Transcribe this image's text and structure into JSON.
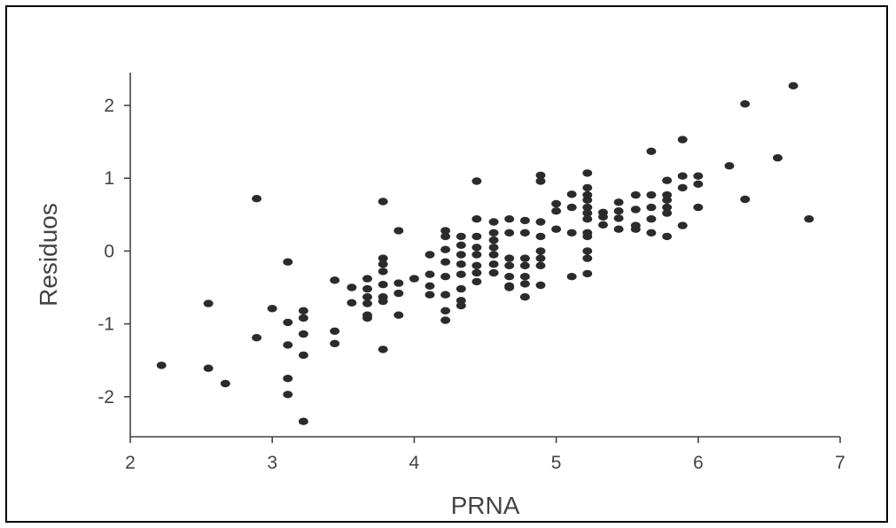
{
  "chart_data": {
    "type": "scatter",
    "title": "",
    "xlabel": "PRNA",
    "ylabel": "Residuos",
    "xlim": [
      2,
      7
    ],
    "ylim": [
      -2.55,
      2.45
    ],
    "xticks": [
      2,
      3,
      4,
      5,
      6,
      7
    ],
    "yticks": [
      -2,
      -1,
      0,
      1,
      2
    ],
    "xtick_labels": [
      "2",
      "3",
      "4",
      "5",
      "6",
      "7"
    ],
    "ytick_labels": [
      "-2",
      "-1",
      "0",
      "1",
      "2"
    ],
    "grid": false,
    "legend": "none",
    "colors": {
      "points": "#2b2b2b",
      "axes": "#444444",
      "text": "#444444"
    },
    "series": [
      {
        "x": [
          2.22,
          2.55,
          2.55,
          2.67,
          2.89,
          2.89,
          3.0,
          3.11,
          3.11,
          3.11,
          3.11,
          3.11,
          3.22,
          3.22,
          3.22,
          3.22,
          3.22,
          3.44,
          3.44,
          3.44,
          3.56,
          3.56,
          3.67,
          3.67,
          3.67,
          3.67,
          3.67,
          3.67,
          3.78,
          3.78,
          3.78,
          3.78,
          3.78,
          3.78,
          3.78,
          3.78,
          3.89,
          3.89,
          3.89,
          3.89,
          4.0,
          4.11,
          4.11,
          4.11,
          4.11,
          4.22,
          4.22,
          4.22,
          4.22,
          4.22,
          4.22,
          4.22,
          4.22,
          4.33,
          4.33,
          4.33,
          4.33,
          4.33,
          4.33,
          4.33,
          4.33,
          4.44,
          4.44,
          4.44,
          4.44,
          4.44,
          4.44,
          4.44,
          4.44,
          4.56,
          4.56,
          4.56,
          4.56,
          4.56,
          4.56,
          4.56,
          4.67,
          4.67,
          4.67,
          4.67,
          4.67,
          4.67,
          4.67,
          4.78,
          4.78,
          4.78,
          4.78,
          4.78,
          4.78,
          4.78,
          4.89,
          4.89,
          4.89,
          4.89,
          4.89,
          4.89,
          4.89,
          4.89,
          5.0,
          5.0,
          5.0,
          5.11,
          5.11,
          5.11,
          5.11,
          5.22,
          5.22,
          5.22,
          5.22,
          5.22,
          5.22,
          5.22,
          5.22,
          5.22,
          5.22,
          5.22,
          5.22,
          5.33,
          5.33,
          5.33,
          5.44,
          5.44,
          5.44,
          5.44,
          5.56,
          5.56,
          5.56,
          5.56,
          5.67,
          5.67,
          5.67,
          5.67,
          5.67,
          5.78,
          5.78,
          5.78,
          5.78,
          5.78,
          5.78,
          5.89,
          5.89,
          5.89,
          5.89,
          6.0,
          6.0,
          6.0,
          6.22,
          6.33,
          6.33,
          6.56,
          6.67,
          6.78
        ],
        "y": [
          -1.57,
          -0.72,
          -1.61,
          -1.82,
          0.72,
          -1.19,
          -0.79,
          -0.15,
          -0.98,
          -1.29,
          -1.75,
          -1.97,
          -0.82,
          -0.92,
          -1.14,
          -1.43,
          -2.34,
          -0.4,
          -1.1,
          -1.27,
          -0.5,
          -0.71,
          -0.38,
          -0.52,
          -0.63,
          -0.72,
          -0.88,
          -0.92,
          0.68,
          -0.1,
          -0.18,
          -0.28,
          -0.46,
          -0.63,
          -0.69,
          -1.35,
          0.28,
          -0.44,
          -0.58,
          -0.88,
          -0.38,
          -0.05,
          -0.32,
          -0.48,
          -0.6,
          0.28,
          0.2,
          0.02,
          -0.15,
          -0.35,
          -0.6,
          -0.82,
          -0.95,
          0.2,
          0.08,
          -0.05,
          -0.18,
          -0.32,
          -0.52,
          -0.68,
          -0.75,
          0.96,
          0.44,
          0.2,
          0.05,
          -0.05,
          -0.2,
          -0.3,
          -0.42,
          0.4,
          0.25,
          0.15,
          0.05,
          -0.05,
          -0.18,
          -0.3,
          0.44,
          0.25,
          -0.1,
          -0.35,
          -0.48,
          -0.5,
          -0.2,
          0.42,
          0.25,
          -0.1,
          -0.2,
          -0.35,
          -0.45,
          -0.63,
          1.04,
          0.96,
          0.4,
          0.2,
          0.0,
          -0.1,
          -0.2,
          -0.47,
          0.65,
          0.55,
          0.3,
          0.78,
          0.6,
          0.25,
          -0.35,
          1.07,
          0.87,
          0.77,
          0.7,
          0.6,
          0.52,
          0.44,
          0.25,
          0.2,
          0.0,
          -0.1,
          -0.31,
          0.53,
          0.47,
          0.36,
          0.67,
          0.55,
          0.45,
          0.3,
          0.77,
          0.57,
          0.35,
          0.3,
          1.37,
          0.77,
          0.6,
          0.44,
          0.25,
          0.97,
          0.77,
          0.7,
          0.6,
          0.52,
          0.2,
          1.53,
          1.03,
          0.87,
          0.35,
          1.03,
          0.92,
          0.6,
          1.17,
          2.02,
          0.71,
          1.28,
          2.27,
          0.44
        ]
      }
    ]
  }
}
